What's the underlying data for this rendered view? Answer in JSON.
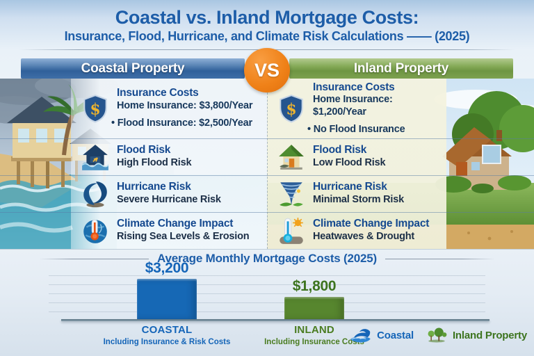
{
  "title": {
    "line1": "Coastal vs. Inland Mortgage Costs:",
    "line2": "Insurance, Flood, Hurricane, and Climate Risk Calculations —— (2025)"
  },
  "header": {
    "coastal": "Coastal Property",
    "vs": "VS",
    "inland": "Inland Property"
  },
  "columns": {
    "coastal": {
      "rows": [
        {
          "icon": "shield-dollar-icon",
          "heading": "Insurance Costs",
          "lines": [
            "Home Insurance: $3,800/Year",
            "• Flood Insurance: $2,500/Year"
          ]
        },
        {
          "icon": "flooded-house-icon",
          "heading": "Flood Risk",
          "lines": [
            "High Flood Risk"
          ]
        },
        {
          "icon": "hurricane-swirl-icon",
          "heading": "Hurricane Risk",
          "lines": [
            "Severe Hurricane Risk"
          ]
        },
        {
          "icon": "globe-thermometer-icon",
          "heading": "Climate Change Impact",
          "lines": [
            "Rising Sea Levels & Erosion"
          ]
        }
      ]
    },
    "inland": {
      "rows": [
        {
          "icon": "shield-dollar-icon",
          "heading": "Insurance Costs",
          "lines": [
            "Home Insurance: $1,200/Year",
            "• No Flood Insurance"
          ]
        },
        {
          "icon": "green-house-icon",
          "heading": "Flood Risk",
          "lines": [
            "Low Flood Risk"
          ]
        },
        {
          "icon": "tornado-icon",
          "heading": "Hurricane Risk",
          "lines": [
            "Minimal Storm Risk"
          ]
        },
        {
          "icon": "thermometer-sun-icon",
          "heading": "Climate Change Impact",
          "lines": [
            "Heatwaves & Drought"
          ]
        }
      ]
    }
  },
  "chart_data": {
    "type": "bar",
    "title": "Average Monthly Mortgage Costs (2025)",
    "categories": [
      "COASTAL",
      "INLAND"
    ],
    "category_sublabels": [
      "Including Insurance & Risk Costs",
      "Including Insurance Costs"
    ],
    "values": [
      3200,
      1800
    ],
    "value_labels": [
      "$3,200",
      "$1,800"
    ],
    "bar_colors": [
      "#1668b5",
      "#57862e"
    ],
    "ylim": [
      0,
      3500
    ],
    "grid": true,
    "legend_position": "bottom-right"
  },
  "legend": [
    {
      "icon": "wave-icon",
      "label": "Coastal",
      "color": "#1565b8"
    },
    {
      "icon": "trees-icon",
      "label": "Inland Property",
      "color": "#3d741f"
    }
  ],
  "colors": {
    "title_text": "#1d5da8",
    "coastal_banner": "#3a689f",
    "inland_banner": "#79a04c",
    "vs_badge": "#ee7d15",
    "heading_text": "#15498f",
    "body_text": "#17385c",
    "coastal_accent": "#1565b8",
    "inland_accent": "#3d741f"
  }
}
